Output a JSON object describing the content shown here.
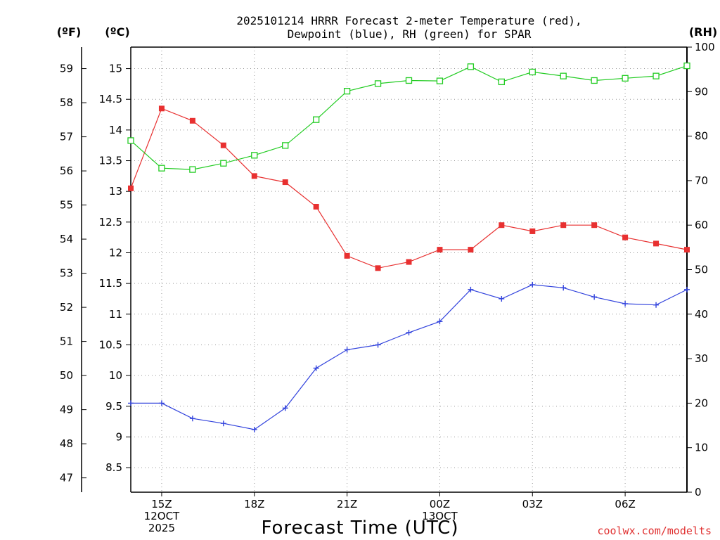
{
  "chart_data": {
    "type": "line",
    "title": [
      "2025101214 HRRR Forecast 2-meter Temperature (red),",
      "Dewpoint (blue), RH (green) for SPAR"
    ],
    "xlabel": "Forecast Time (UTC)",
    "units": {
      "fahrenheit": "(ºF)",
      "celsius": "(ºC)",
      "rh": "(RH)"
    },
    "credit": "coolwx.com/modelts",
    "x_hours": [
      0,
      1,
      2,
      3,
      4,
      5,
      6,
      7,
      8,
      9,
      10,
      11,
      12,
      13,
      14,
      15,
      16,
      17,
      18
    ],
    "x_ticks": [
      {
        "hour": 1,
        "lines": [
          "15Z",
          "12OCT",
          "2025"
        ]
      },
      {
        "hour": 4,
        "lines": [
          "18Z"
        ]
      },
      {
        "hour": 7,
        "lines": [
          "21Z"
        ]
      },
      {
        "hour": 10,
        "lines": [
          "00Z",
          "13OCT"
        ]
      },
      {
        "hour": 13,
        "lines": [
          "03Z"
        ]
      },
      {
        "hour": 16,
        "lines": [
          "06Z"
        ]
      }
    ],
    "celsius_axis": {
      "ylim": [
        8.1,
        15.35
      ],
      "ticks": [
        "8.5",
        "9",
        "9.5",
        "10",
        "10.5",
        "11",
        "11.5",
        "12",
        "12.5",
        "13",
        "13.5",
        "14",
        "14.5",
        "15"
      ]
    },
    "fahrenheit_axis": {
      "ticks": [
        "47",
        "48",
        "49",
        "50",
        "51",
        "52",
        "53",
        "54",
        "55",
        "56",
        "57",
        "58",
        "59"
      ]
    },
    "rh_axis": {
      "ylim": [
        0,
        100
      ],
      "ticks": [
        "0",
        "10",
        "20",
        "30",
        "40",
        "50",
        "60",
        "70",
        "80",
        "90",
        "100"
      ]
    },
    "series": [
      {
        "name": "Temperature",
        "axis": "celsius",
        "color": "#e83030",
        "marker": "filled-square",
        "values": [
          13.05,
          14.35,
          14.15,
          13.75,
          13.25,
          13.15,
          12.75,
          11.95,
          11.75,
          11.85,
          12.05,
          12.05,
          12.45,
          12.35,
          12.45,
          12.45,
          12.25,
          12.15,
          12.05
        ]
      },
      {
        "name": "Dewpoint",
        "axis": "celsius",
        "color": "#3344dd",
        "marker": "plus",
        "values": [
          9.55,
          9.55,
          9.3,
          9.22,
          9.12,
          9.47,
          10.12,
          10.42,
          10.5,
          10.7,
          10.88,
          11.4,
          11.25,
          11.48,
          11.43,
          11.28,
          11.17,
          11.15,
          11.4
        ]
      },
      {
        "name": "RH",
        "axis": "rh",
        "color": "#22cc22",
        "marker": "open-square",
        "values": [
          79,
          72.8,
          72.5,
          73.9,
          75.7,
          77.9,
          83.7,
          90.1,
          91.8,
          92.5,
          92.4,
          95.6,
          92.2,
          94.4,
          93.5,
          92.5,
          93,
          93.5,
          95.8
        ]
      }
    ]
  }
}
